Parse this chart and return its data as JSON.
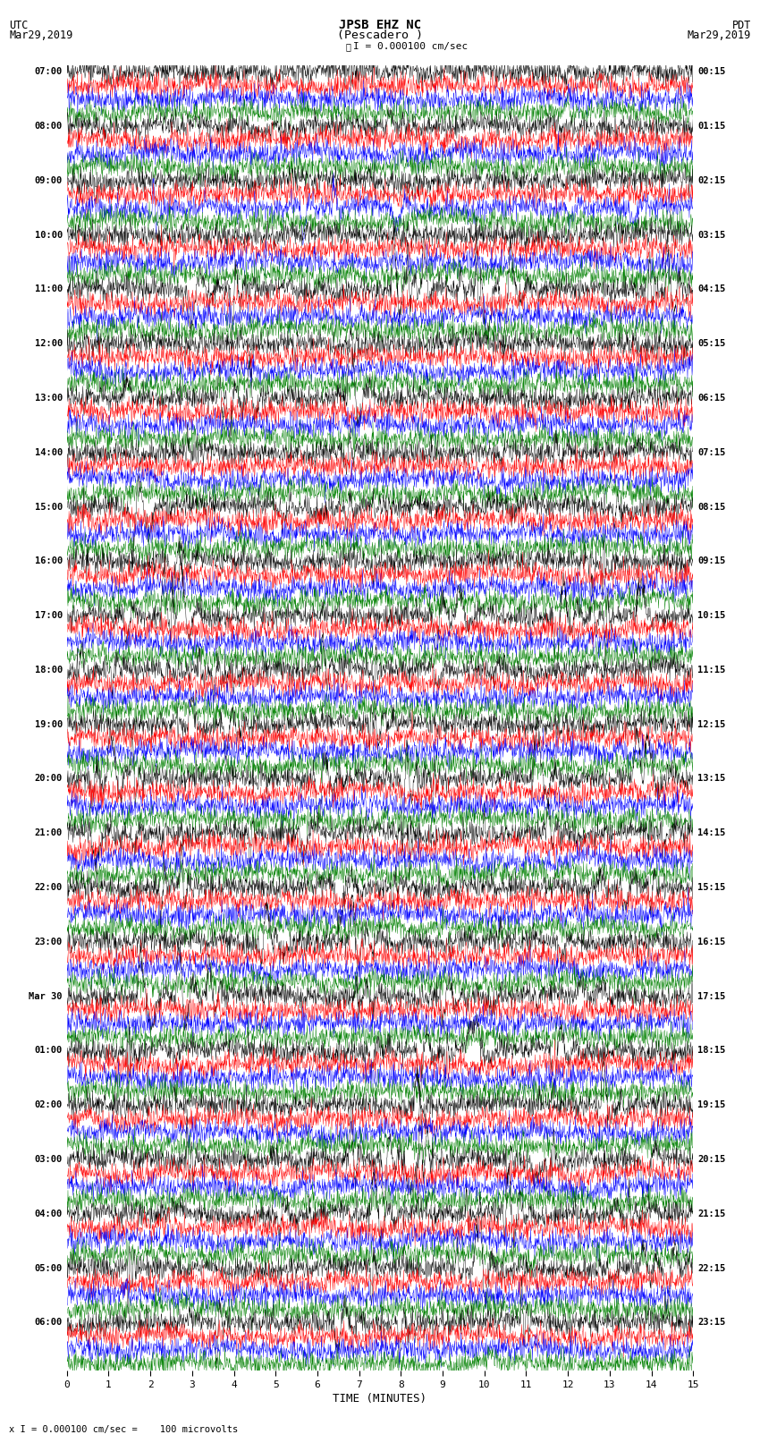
{
  "title_line1": "JPSB EHZ NC",
  "title_line2": "(Pescadero )",
  "scale_label": "I = 0.000100 cm/sec",
  "footer_label": "x I = 0.000100 cm/sec =    100 microvolts",
  "utc_label": "UTC",
  "pdt_label": "PDT",
  "date_left": "Mar29,2019",
  "date_right": "Mar29,2019",
  "xlabel": "TIME (MINUTES)",
  "colors_cycle": [
    "black",
    "red",
    "blue",
    "green"
  ],
  "bg_color": "white",
  "num_traces": 96,
  "figsize": [
    8.5,
    16.13
  ],
  "dpi": 100,
  "left_times": [
    "07:00",
    "",
    "",
    "",
    "08:00",
    "",
    "",
    "",
    "09:00",
    "",
    "",
    "",
    "10:00",
    "",
    "",
    "",
    "11:00",
    "",
    "",
    "",
    "12:00",
    "",
    "",
    "",
    "13:00",
    "",
    "",
    "",
    "14:00",
    "",
    "",
    "",
    "15:00",
    "",
    "",
    "",
    "16:00",
    "",
    "",
    "",
    "17:00",
    "",
    "",
    "",
    "18:00",
    "",
    "",
    "",
    "19:00",
    "",
    "",
    "",
    "20:00",
    "",
    "",
    "",
    "21:00",
    "",
    "",
    "",
    "22:00",
    "",
    "",
    "",
    "23:00",
    "",
    "",
    "",
    "Mar 30",
    "",
    "",
    "",
    "01:00",
    "",
    "",
    "",
    "02:00",
    "",
    "",
    "",
    "03:00",
    "",
    "",
    "",
    "04:00",
    "",
    "",
    "",
    "05:00",
    "",
    "",
    "",
    "06:00",
    "",
    "",
    ""
  ],
  "right_times": [
    "00:15",
    "",
    "",
    "",
    "01:15",
    "",
    "",
    "",
    "02:15",
    "",
    "",
    "",
    "03:15",
    "",
    "",
    "",
    "04:15",
    "",
    "",
    "",
    "05:15",
    "",
    "",
    "",
    "06:15",
    "",
    "",
    "",
    "07:15",
    "",
    "",
    "",
    "08:15",
    "",
    "",
    "",
    "09:15",
    "",
    "",
    "",
    "10:15",
    "",
    "",
    "",
    "11:15",
    "",
    "",
    "",
    "12:15",
    "",
    "",
    "",
    "13:15",
    "",
    "",
    "",
    "14:15",
    "",
    "",
    "",
    "15:15",
    "",
    "",
    "",
    "16:15",
    "",
    "",
    "",
    "17:15",
    "",
    "",
    "",
    "18:15",
    "",
    "",
    "",
    "19:15",
    "",
    "",
    "",
    "20:15",
    "",
    "",
    "",
    "21:15",
    "",
    "",
    "",
    "22:15",
    "",
    "",
    "",
    "23:15",
    "",
    "",
    ""
  ],
  "event_traces": {
    "10": 4.0,
    "16": 8.0,
    "20": 3.0,
    "24": 4.0,
    "28": 3.5,
    "32": 5.0,
    "36": 3.0,
    "40": 6.0,
    "44": 4.0,
    "48": 3.5,
    "52": 7.0,
    "56": 4.0,
    "60": 5.0,
    "64": 6.0,
    "68": 5.0,
    "72": 5.5,
    "76": 4.0,
    "80": 7.0,
    "84": 4.5,
    "88": 5.0,
    "92": 4.0
  }
}
